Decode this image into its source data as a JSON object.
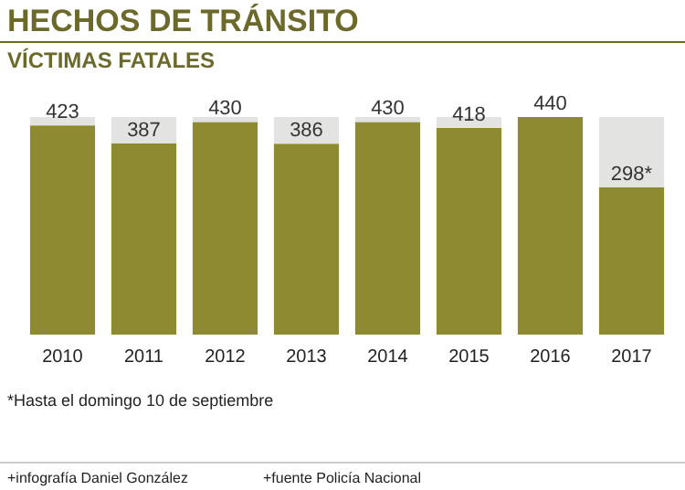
{
  "chart_data": {
    "type": "bar",
    "title": "HECHOS DE TRÁNSITO",
    "subtitle": "VÍCTIMAS FATALES",
    "categories": [
      "2010",
      "2011",
      "2012",
      "2013",
      "2014",
      "2015",
      "2016",
      "2017"
    ],
    "stacked": true,
    "series": [
      {
        "color": "#8d8a32",
        "values": [
          423,
          387,
          430,
          386,
          430,
          418,
          440,
          298
        ],
        "value_labels": [
          "423",
          "387",
          "430",
          "386",
          "430",
          "418",
          "440",
          "298*"
        ]
      },
      {
        "color": "#e3e3e1",
        "values": [
          17,
          53,
          10,
          54,
          10,
          22,
          0,
          142
        ]
      }
    ],
    "annotations": [
      "*Hasta el domingo 10 de septiembre",
      "+infografía Daniel González",
      "+fuente Policía Nacional"
    ]
  }
}
